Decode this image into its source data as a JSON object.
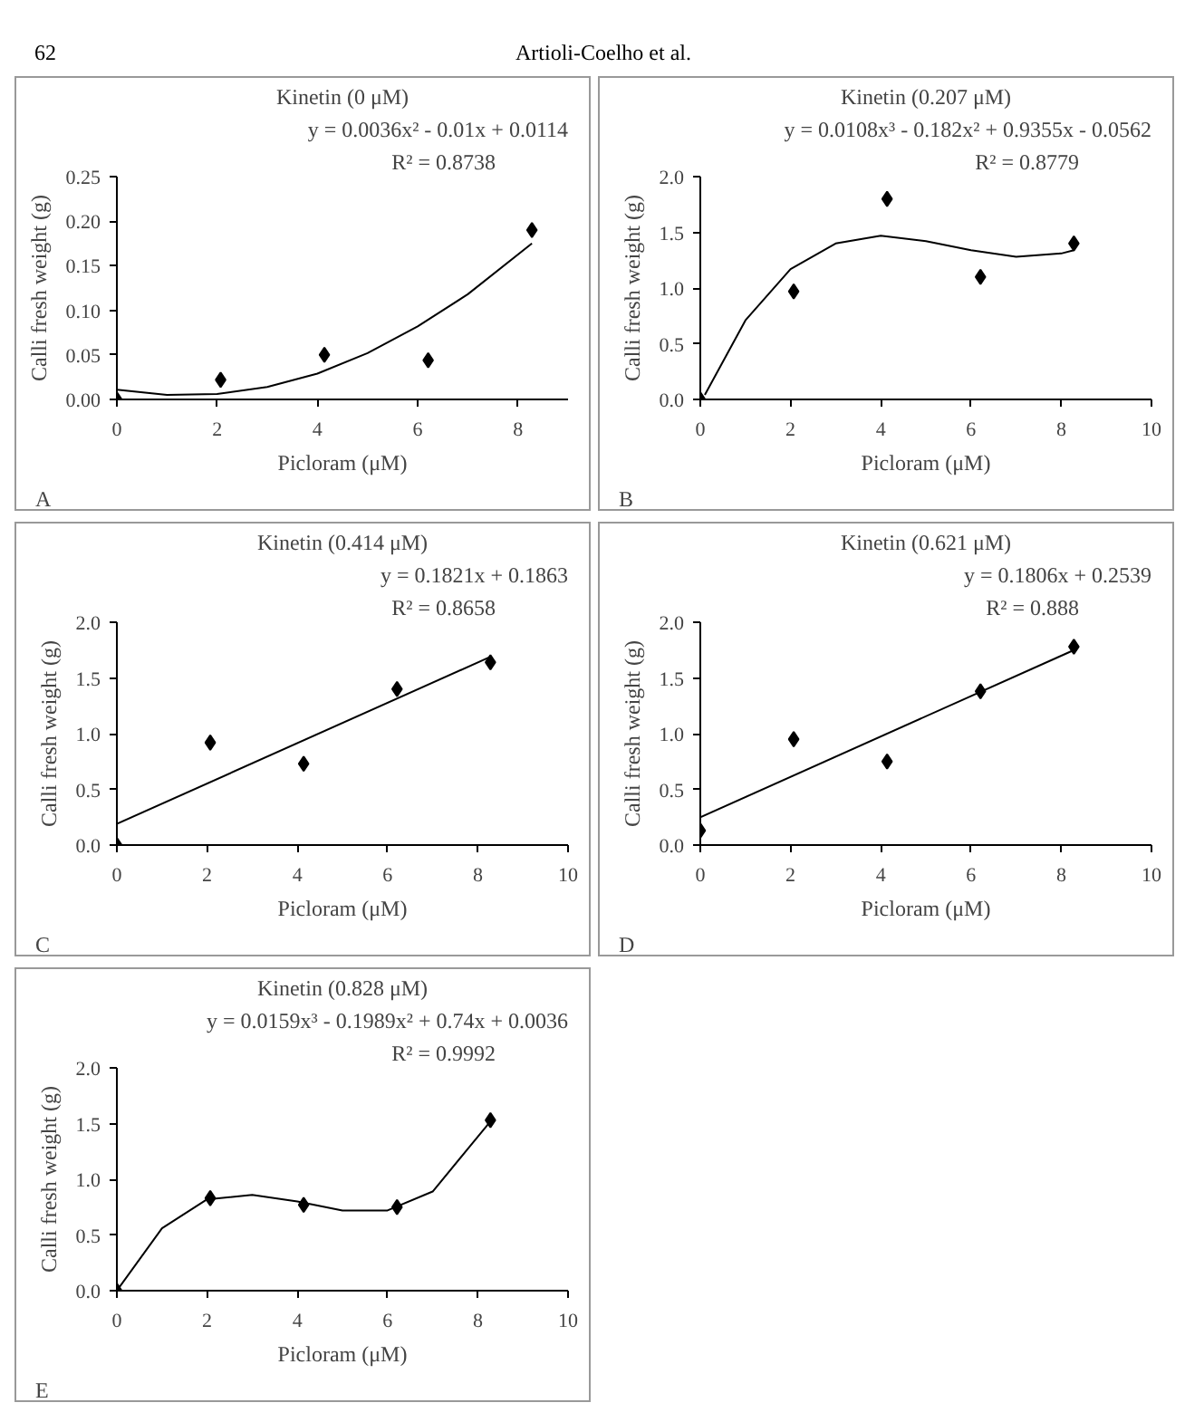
{
  "chart_data": [
    {
      "type": "scatter",
      "title": "Kinetin (0 μM)",
      "xlabel": "Picloram (μM)",
      "ylabel": "Calli fresh weight (g)",
      "xlim": [
        0,
        9
      ],
      "xticks": [
        0,
        2,
        4,
        6,
        8
      ],
      "ylim": [
        0,
        0.25
      ],
      "yticks": [
        {
          "value": 0,
          "label": "0.00"
        },
        {
          "value": 0.05,
          "label": "0.05"
        },
        {
          "value": 0.1,
          "label": "0.10"
        },
        {
          "value": 0.15,
          "label": "0.15"
        },
        {
          "value": 0.2,
          "label": "0.20"
        },
        {
          "value": 0.25,
          "label": "0.25"
        }
      ],
      "marker": "diamond",
      "series": [
        {
          "type": "scatter",
          "color": "#000000",
          "x": [
            0,
            2.07,
            4.14,
            6.21,
            8.28
          ],
          "values": [
            0,
            0.022,
            0.05,
            0.044,
            0.19
          ]
        },
        {
          "type": "line",
          "color": "#000000",
          "line_style": "solid",
          "marker": "none",
          "x": [
            0,
            1,
            2,
            3,
            4,
            5,
            6,
            7,
            8.28
          ],
          "values": [
            0.011,
            0.005,
            0.006,
            0.014,
            0.029,
            0.052,
            0.082,
            0.118,
            0.175
          ]
        }
      ],
      "annotations": [
        "y = 0.0036x² - 0.01x + 0.0114",
        "R² = 0.8738",
        "A",
        "62",
        "Artioli-Coelho et al."
      ]
    },
    {
      "type": "scatter",
      "title": "Kinetin (0.207 μM)",
      "xlabel": "Picloram (μM)",
      "ylabel": "Calli fresh weight (g)",
      "xlim": [
        0,
        10
      ],
      "xticks": [
        0,
        2,
        4,
        6,
        8,
        10
      ],
      "ylim": [
        0,
        2
      ],
      "yticks": [
        {
          "value": 0,
          "label": "0.0"
        },
        {
          "value": 0.5,
          "label": "0.5"
        },
        {
          "value": 1,
          "label": "1.0"
        },
        {
          "value": 1.5,
          "label": "1.5"
        },
        {
          "value": 2,
          "label": "2.0"
        }
      ],
      "marker": "diamond",
      "series": [
        {
          "type": "scatter",
          "color": "#000000",
          "x": [
            0,
            2.07,
            4.14,
            6.21,
            8.28
          ],
          "values": [
            0,
            0.97,
            1.8,
            1.1,
            1.4
          ]
        },
        {
          "type": "line",
          "color": "#000000",
          "line_style": "solid",
          "marker": "none",
          "x": [
            0.1,
            1,
            2,
            3,
            4,
            5,
            6,
            7,
            8,
            8.28
          ],
          "values": [
            0.04,
            0.71,
            1.17,
            1.4,
            1.47,
            1.42,
            1.34,
            1.28,
            1.31,
            1.34
          ]
        }
      ],
      "annotations": [
        "y = 0.0108x³ - 0.182x² + 0.9355x - 0.0562",
        "R² = 0.8779",
        "B"
      ]
    },
    {
      "type": "scatter",
      "title": "Kinetin (0.414 μM)",
      "xlabel": "Picloram (μM)",
      "ylabel": "Calli fresh weight (g)",
      "xlim": [
        0,
        10
      ],
      "xticks": [
        0,
        2,
        4,
        6,
        8,
        10
      ],
      "ylim": [
        0,
        2
      ],
      "yticks": [
        {
          "value": 0,
          "label": "0.0"
        },
        {
          "value": 0.5,
          "label": "0.5"
        },
        {
          "value": 1,
          "label": "1.0"
        },
        {
          "value": 1.5,
          "label": "1.5"
        },
        {
          "value": 2,
          "label": "2.0"
        }
      ],
      "marker": "diamond",
      "series": [
        {
          "type": "scatter",
          "color": "#000000",
          "x": [
            0,
            2.07,
            4.14,
            6.21,
            8.28
          ],
          "values": [
            0,
            0.92,
            0.73,
            1.4,
            1.64
          ]
        },
        {
          "type": "line",
          "color": "#000000",
          "line_style": "solid",
          "marker": "none",
          "x": [
            0,
            8.28
          ],
          "values": [
            0.19,
            1.69
          ]
        }
      ],
      "annotations": [
        "y = 0.1821x + 0.1863",
        "R² = 0.8658",
        "C"
      ]
    },
    {
      "type": "scatter",
      "title": "Kinetin (0.621 μM)",
      "xlabel": "Picloram (μM)",
      "ylabel": "Calli fresh weight (g)",
      "xlim": [
        0,
        10
      ],
      "xticks": [
        0,
        2,
        4,
        6,
        8,
        10
      ],
      "ylim": [
        0,
        2
      ],
      "yticks": [
        {
          "value": 0,
          "label": "0.0"
        },
        {
          "value": 0.5,
          "label": "0.5"
        },
        {
          "value": 1,
          "label": "1.0"
        },
        {
          "value": 1.5,
          "label": "1.5"
        },
        {
          "value": 2,
          "label": "2.0"
        }
      ],
      "marker": "diamond",
      "series": [
        {
          "type": "scatter",
          "color": "#000000",
          "x": [
            0,
            2.07,
            4.14,
            6.21,
            8.28
          ],
          "values": [
            0.13,
            0.95,
            0.75,
            1.38,
            1.78
          ]
        },
        {
          "type": "line",
          "color": "#000000",
          "line_style": "solid",
          "marker": "none",
          "x": [
            0,
            8.28
          ],
          "values": [
            0.25,
            1.75
          ]
        }
      ],
      "annotations": [
        "y = 0.1806x + 0.2539",
        "R² = 0.888",
        "D"
      ]
    },
    {
      "type": "scatter",
      "title": "Kinetin (0.828 μM)",
      "xlabel": "Picloram (μM)",
      "ylabel": "Calli fresh weight (g)",
      "xlim": [
        0,
        10
      ],
      "xticks": [
        0,
        2,
        4,
        6,
        8,
        10
      ],
      "ylim": [
        0,
        2
      ],
      "yticks": [
        {
          "value": 0,
          "label": "0.0"
        },
        {
          "value": 0.5,
          "label": "0.5"
        },
        {
          "value": 1,
          "label": "1.0"
        },
        {
          "value": 1.5,
          "label": "1.5"
        },
        {
          "value": 2,
          "label": "2.0"
        }
      ],
      "marker": "diamond",
      "series": [
        {
          "type": "scatter",
          "color": "#000000",
          "x": [
            0,
            2.07,
            4.14,
            6.21,
            8.28
          ],
          "values": [
            0,
            0.83,
            0.77,
            0.75,
            1.53
          ]
        },
        {
          "type": "line",
          "color": "#000000",
          "line_style": "solid",
          "marker": "none",
          "x": [
            0,
            1,
            2,
            3,
            4,
            5,
            6,
            7,
            8.28
          ],
          "values": [
            0.0,
            0.56,
            0.82,
            0.86,
            0.8,
            0.72,
            0.72,
            0.89,
            1.52
          ]
        }
      ],
      "annotations": [
        "y = 0.0159x³ - 0.1989x² + 0.74x + 0.0036",
        "R² = 0.9992",
        "E"
      ]
    }
  ]
}
